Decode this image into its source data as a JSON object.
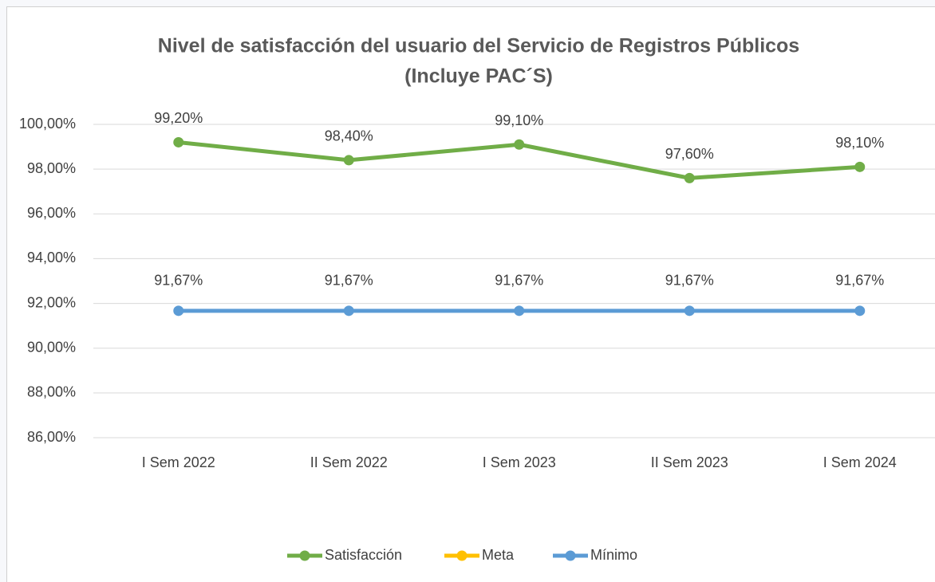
{
  "chart_data": {
    "type": "line",
    "title": "Nivel de satisfacción del usuario del Servicio de Registros Públicos",
    "subtitle": "(Incluye PAC´S)",
    "categories": [
      "I Sem 2022",
      "II Sem 2022",
      "I Sem 2023",
      "II Sem 2023",
      "I Sem 2024"
    ],
    "series": [
      {
        "name": "Satisfacción",
        "color": "#70ad47",
        "values": [
          99.2,
          98.4,
          99.1,
          97.6,
          98.1
        ],
        "value_labels": [
          "99,20%",
          "98,40%",
          "99,10%",
          "97,60%",
          "98,10%"
        ]
      },
      {
        "name": "Meta",
        "color": "#ffc000",
        "values": [
          null,
          null,
          null,
          null,
          null
        ]
      },
      {
        "name": "Mínimo",
        "color": "#5b9bd5",
        "values": [
          91.67,
          91.67,
          91.67,
          91.67,
          91.67
        ],
        "value_labels": [
          "91,67%",
          "91,67%",
          "91,67%",
          "91,67%",
          "91,67%"
        ]
      }
    ],
    "ylim": [
      86,
      100
    ],
    "yticks": [
      {
        "value": 86,
        "label": "86,00%"
      },
      {
        "value": 88,
        "label": "88,00%"
      },
      {
        "value": 90,
        "label": "90,00%"
      },
      {
        "value": 92,
        "label": "92,00%"
      },
      {
        "value": 94,
        "label": "94,00%"
      },
      {
        "value": 96,
        "label": "96,00%"
      },
      {
        "value": 98,
        "label": "98,00%"
      },
      {
        "value": 100,
        "label": "100,00%"
      }
    ],
    "grid": true,
    "legend": "bottom"
  }
}
